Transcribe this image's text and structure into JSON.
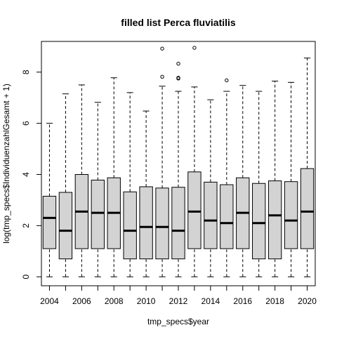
{
  "chart_data": {
    "type": "boxplot",
    "title": "filled list Perca fluviatilis",
    "xlabel": "tmp_specs$year",
    "ylabel": "log(tmp_specs$IndividuenzahlGesamt + 1)",
    "ylim": [
      -0.35,
      9.2
    ],
    "yticks": [
      0,
      2,
      4,
      6,
      8
    ],
    "xtick_labels": [
      "2004",
      "2006",
      "2008",
      "2010",
      "2012",
      "2014",
      "2016",
      "2018",
      "2020"
    ],
    "grid": false,
    "box_fill": "#d3d3d3",
    "boxes": [
      {
        "year": 2004,
        "min": 0,
        "q1": 1.1,
        "median": 2.3,
        "q3": 3.15,
        "max": 6.0,
        "outliers": []
      },
      {
        "year": 2005,
        "min": 0,
        "q1": 0.7,
        "median": 1.8,
        "q3": 3.3,
        "max": 7.15,
        "outliers": []
      },
      {
        "year": 2006,
        "min": 0,
        "q1": 1.1,
        "median": 2.55,
        "q3": 4.0,
        "max": 7.5,
        "outliers": []
      },
      {
        "year": 2007,
        "min": 0,
        "q1": 1.1,
        "median": 2.5,
        "q3": 3.78,
        "max": 6.82,
        "outliers": []
      },
      {
        "year": 2008,
        "min": 0,
        "q1": 1.1,
        "median": 2.5,
        "q3": 3.87,
        "max": 7.78,
        "outliers": []
      },
      {
        "year": 2009,
        "min": 0,
        "q1": 0.7,
        "median": 1.8,
        "q3": 3.32,
        "max": 7.2,
        "outliers": []
      },
      {
        "year": 2010,
        "min": 0,
        "q1": 0.7,
        "median": 1.95,
        "q3": 3.52,
        "max": 6.48,
        "outliers": []
      },
      {
        "year": 2011,
        "min": 0,
        "q1": 0.7,
        "median": 1.95,
        "q3": 3.47,
        "max": 7.45,
        "outliers": [
          7.82,
          8.92
        ]
      },
      {
        "year": 2012,
        "min": 0,
        "q1": 0.7,
        "median": 1.8,
        "q3": 3.5,
        "max": 7.25,
        "outliers": [
          7.75,
          7.78,
          8.33
        ]
      },
      {
        "year": 2013,
        "min": 0,
        "q1": 1.1,
        "median": 2.55,
        "q3": 4.1,
        "max": 7.42,
        "outliers": [
          8.95
        ]
      },
      {
        "year": 2014,
        "min": 0,
        "q1": 1.1,
        "median": 2.2,
        "q3": 3.7,
        "max": 6.92,
        "outliers": []
      },
      {
        "year": 2015,
        "min": 0,
        "q1": 1.1,
        "median": 2.1,
        "q3": 3.6,
        "max": 7.25,
        "outliers": [
          7.68
        ]
      },
      {
        "year": 2016,
        "min": 0,
        "q1": 1.1,
        "median": 2.5,
        "q3": 3.87,
        "max": 7.48,
        "outliers": []
      },
      {
        "year": 2017,
        "min": 0,
        "q1": 0.7,
        "median": 2.1,
        "q3": 3.65,
        "max": 7.25,
        "outliers": []
      },
      {
        "year": 2018,
        "min": 0,
        "q1": 0.7,
        "median": 2.4,
        "q3": 3.75,
        "max": 7.65,
        "outliers": []
      },
      {
        "year": 2019,
        "min": 0,
        "q1": 1.1,
        "median": 2.2,
        "q3": 3.72,
        "max": 7.6,
        "outliers": []
      },
      {
        "year": 2020,
        "min": 0,
        "q1": 1.1,
        "median": 2.55,
        "q3": 4.23,
        "max": 8.55,
        "outliers": []
      }
    ]
  }
}
